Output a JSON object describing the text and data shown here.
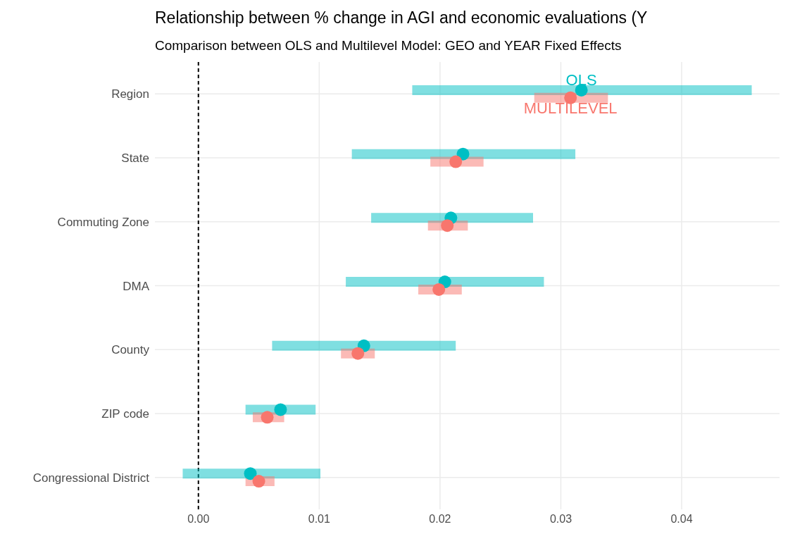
{
  "chart_data": {
    "type": "scatter",
    "orientation": "horizontal",
    "title": "Relationship between % change in AGI and economic evaluations (Y",
    "subtitle": "Comparison between OLS and Multilevel Model: GEO and YEAR Fixed Effects",
    "categories": [
      "Region",
      "State",
      "Commuting Zone",
      "DMA",
      "County",
      "ZIP code",
      "Congressional District"
    ],
    "series": [
      {
        "name": "OLS",
        "color": "#00bfc4",
        "values": [
          0.0317,
          0.0219,
          0.0209,
          0.0204,
          0.0137,
          0.0068,
          0.0043
        ],
        "errors": [
          [
            0.0177,
            0.0458
          ],
          [
            0.0127,
            0.0312
          ],
          [
            0.0143,
            0.0277
          ],
          [
            0.0122,
            0.0286
          ],
          [
            0.0061,
            0.0213
          ],
          [
            0.0039,
            0.0097
          ],
          [
            -0.0013,
            0.0101
          ]
        ]
      },
      {
        "name": "MULTILEVEL",
        "color": "#f8766d",
        "values": [
          0.0308,
          0.0213,
          0.0206,
          0.0199,
          0.0132,
          0.0057,
          0.005
        ],
        "errors": [
          [
            0.0278,
            0.0339
          ],
          [
            0.0192,
            0.0236
          ],
          [
            0.019,
            0.0223
          ],
          [
            0.0182,
            0.0218
          ],
          [
            0.0118,
            0.0146
          ],
          [
            0.0045,
            0.0071
          ],
          [
            0.0039,
            0.0063
          ]
        ]
      }
    ],
    "xlim": [
      -0.0036,
      0.0481
    ],
    "xticks": [
      {
        "value": 0,
        "label": "0.00"
      },
      {
        "value": 0.01,
        "label": "0.01"
      },
      {
        "value": 0.02,
        "label": "0.02"
      },
      {
        "value": 0.03,
        "label": "0.03"
      },
      {
        "value": 0.04,
        "label": "0.04"
      }
    ],
    "ref_lines": [
      {
        "axis": "x",
        "value": 0,
        "color": "#000000",
        "line_style": "dashed"
      }
    ],
    "grid": true,
    "marker": "circle",
    "legend": false
  }
}
